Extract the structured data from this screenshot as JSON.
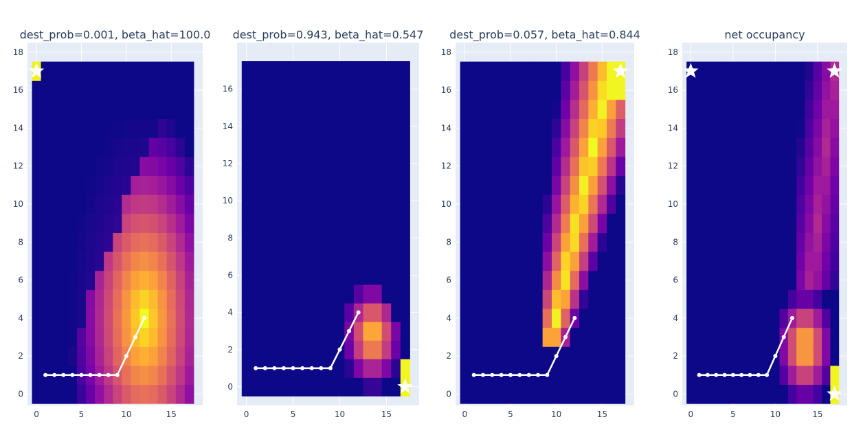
{
  "colors": {
    "plot_background": "#e5ecf6",
    "grid": "#ffffff",
    "trajectory": "#ffffff",
    "marker": "#ffffff",
    "colorscale": [
      "#0d0887",
      "#46039f",
      "#7201a8",
      "#9c179e",
      "#bd3786",
      "#d8576b",
      "#ed7953",
      "#fb9f3a",
      "#fdca26",
      "#f0f921"
    ]
  },
  "chart_data": [
    {
      "type": "heatmap",
      "title": "dest_prob=0.001, beta_hat=100.0",
      "xlim": [
        -1,
        18.5
      ],
      "ylim": [
        -0.6,
        18.5
      ],
      "xticks": [
        0,
        5,
        10,
        15
      ],
      "yticks": [
        0,
        2,
        4,
        6,
        8,
        10,
        12,
        14,
        16,
        18
      ],
      "grid": true,
      "heatmap": {
        "x_range": [
          0,
          17
        ],
        "y_range": [
          0,
          17
        ],
        "pattern": "broad_gradient",
        "peak": [
          12,
          4
        ]
      },
      "path": {
        "x": [
          1,
          2,
          3,
          4,
          5,
          6,
          7,
          8,
          9,
          10,
          11,
          12
        ],
        "y": [
          1,
          1,
          1,
          1,
          1,
          1,
          1,
          1,
          1,
          2,
          3,
          4
        ]
      },
      "stars": [
        {
          "x": 0,
          "y": 17
        }
      ]
    },
    {
      "type": "heatmap",
      "title": "dest_prob=0.943, beta_hat=0.547",
      "xlim": [
        -1,
        18.5
      ],
      "ylim": [
        -1,
        18.5
      ],
      "xticks": [
        0,
        5,
        10,
        15
      ],
      "yticks": [
        0,
        2,
        4,
        6,
        8,
        10,
        12,
        14,
        16
      ],
      "grid": true,
      "heatmap": {
        "x_range": [
          0,
          17
        ],
        "y_range": [
          0,
          17
        ],
        "pattern": "bottom_right_cluster"
      },
      "path": {
        "x": [
          1,
          2,
          3,
          4,
          5,
          6,
          7,
          8,
          9,
          10,
          11,
          12
        ],
        "y": [
          1,
          1,
          1,
          1,
          1,
          1,
          1,
          1,
          1,
          2,
          3,
          4
        ]
      },
      "stars": [
        {
          "x": 17,
          "y": 0
        }
      ]
    },
    {
      "type": "heatmap",
      "title": "dest_prob=0.057, beta_hat=0.844",
      "xlim": [
        -1,
        18.5
      ],
      "ylim": [
        -0.6,
        18.5
      ],
      "xticks": [
        0,
        5,
        10,
        15
      ],
      "yticks": [
        0,
        2,
        4,
        6,
        8,
        10,
        12,
        14,
        16,
        18
      ],
      "grid": true,
      "heatmap": {
        "x_range": [
          0,
          17
        ],
        "y_range": [
          0,
          17
        ],
        "pattern": "diagonal_band"
      },
      "path": {
        "x": [
          1,
          2,
          3,
          4,
          5,
          6,
          7,
          8,
          9,
          10,
          11,
          12
        ],
        "y": [
          1,
          1,
          1,
          1,
          1,
          1,
          1,
          1,
          1,
          2,
          3,
          4
        ]
      },
      "stars": [
        {
          "x": 17,
          "y": 17
        }
      ]
    },
    {
      "type": "heatmap",
      "title": "net occupancy",
      "xlim": [
        -1,
        18.5
      ],
      "ylim": [
        -0.6,
        18.5
      ],
      "xticks": [
        0,
        5,
        10,
        15
      ],
      "yticks": [
        0,
        2,
        4,
        6,
        8,
        10,
        12,
        14,
        16,
        18
      ],
      "grid": true,
      "heatmap": {
        "x_range": [
          0,
          17
        ],
        "y_range": [
          0,
          17
        ],
        "pattern": "combined"
      },
      "path": {
        "x": [
          1,
          2,
          3,
          4,
          5,
          6,
          7,
          8,
          9,
          10,
          11,
          12
        ],
        "y": [
          1,
          1,
          1,
          1,
          1,
          1,
          1,
          1,
          1,
          2,
          3,
          4
        ]
      },
      "stars": [
        {
          "x": 0,
          "y": 17
        },
        {
          "x": 17,
          "y": 17
        },
        {
          "x": 17,
          "y": 0
        }
      ]
    }
  ]
}
